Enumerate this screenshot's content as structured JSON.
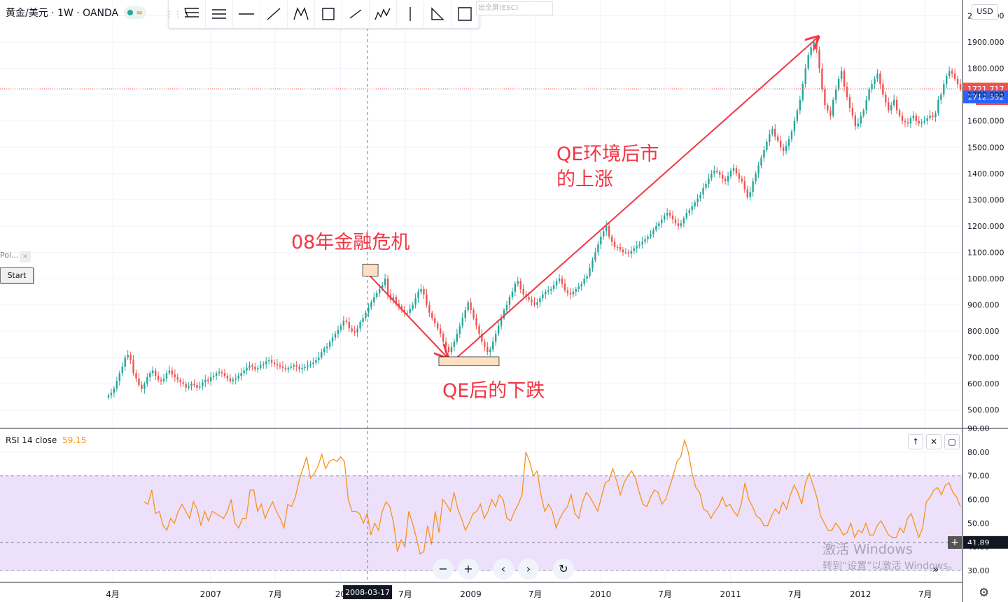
{
  "legend": {
    "symbol": "黄金/美元 · 1W · OANDA"
  },
  "toolbar": {
    "exit_label": "出全屏(ESC)",
    "tools": [
      "fib-icon",
      "parallel-channel-icon",
      "horizontal-line-icon",
      "trend-line-icon",
      "pattern-icon",
      "rectangle-icon",
      "segment-icon",
      "elliott-icon",
      "vertical-line-icon",
      "triangle-icon",
      "box-icon"
    ]
  },
  "currency": "USD",
  "side_panel": {
    "poi_label": "Poi...",
    "close_label": "×",
    "start_label": "Start"
  },
  "annotations": {
    "crisis": "08年金融危机",
    "qe_drop": "QE后的下跌",
    "qe_rise_line1": "QE环境后市",
    "qe_rise_line2": "的上涨"
  },
  "price_badges": {
    "last": "1721.717",
    "countdown": "4d 14h",
    "other": "1712.552"
  },
  "rsi": {
    "label": "RSI 14 close",
    "value": "59.15",
    "crosshair_value": "41.89",
    "yticks": [
      "90.00",
      "80.00",
      "70.00",
      "60.00",
      "50.00",
      "40.00",
      "30.00"
    ]
  },
  "crosshair_date": "2008-03-17",
  "xaxis_labels": [
    "4月",
    "2007",
    "7月",
    "20",
    "7月",
    "2009",
    "7月",
    "2010",
    "7月",
    "2011",
    "7月",
    "2012",
    "7月"
  ],
  "navigation": {
    "zoom_out": "−",
    "zoom_in": "+",
    "prev": "‹",
    "next": "›",
    "reset": "↻",
    "scroll_end": "»"
  },
  "watermark": {
    "line1": "激活 Windows",
    "line2": "转到“设置”以激活 Windows。"
  },
  "colors": {
    "up": "#26a69a",
    "down": "#ef5350",
    "annotation": "#f23645",
    "rsi_line": "#f7931a",
    "rsi_band": "#ede0fb",
    "blue_badge": "#2962ff"
  },
  "chart_data": [
    {
      "type": "candlestick",
      "title": "黄金/美元 · 1W · OANDA",
      "ylabel": "USD",
      "ylim": [
        430,
        2060
      ],
      "yticks": [
        "2000.000",
        "1900.000",
        "1800.000",
        "1700.000",
        "1600.000",
        "1500.000",
        "1400.000",
        "1300.000",
        "1200.000",
        "1100.000",
        "1000.000",
        "900.000",
        "800.000",
        "700.000",
        "600.000",
        "500.000"
      ],
      "x_start": "2006-03-20",
      "x_end": "2012-10-08",
      "weekly_close": [
        556,
        566,
        582,
        610,
        640,
        665,
        700,
        710,
        690,
        640,
        620,
        595,
        580,
        600,
        625,
        640,
        650,
        630,
        615,
        610,
        620,
        640,
        650,
        635,
        625,
        615,
        605,
        600,
        585,
        590,
        600,
        595,
        585,
        590,
        605,
        615,
        610,
        625,
        630,
        640,
        645,
        640,
        630,
        620,
        610,
        615,
        620,
        630,
        640,
        650,
        660,
        670,
        665,
        655,
        660,
        670,
        675,
        685,
        690,
        680,
        675,
        670,
        665,
        660,
        655,
        660,
        665,
        670,
        665,
        655,
        660,
        665,
        670,
        675,
        680,
        690,
        700,
        720,
        735,
        740,
        760,
        775,
        790,
        805,
        820,
        840,
        835,
        810,
        800,
        795,
        810,
        835,
        850,
        870,
        890,
        910,
        930,
        945,
        960,
        975,
        1000,
        940,
        920,
        930,
        905,
        895,
        880,
        870,
        870,
        885,
        900,
        925,
        950,
        960,
        940,
        900,
        870,
        850,
        830,
        810,
        790,
        760,
        740,
        720,
        740,
        760,
        790,
        820,
        850,
        880,
        910,
        880,
        850,
        820,
        790,
        760,
        740,
        720,
        730,
        760,
        790,
        820,
        850,
        880,
        900,
        930,
        950,
        980,
        990,
        960,
        940,
        930,
        920,
        910,
        900,
        910,
        925,
        940,
        950,
        955,
        960,
        975,
        990,
        1000,
        980,
        955,
        945,
        940,
        950,
        960,
        970,
        980,
        1000,
        1010,
        1040,
        1070,
        1100,
        1130,
        1160,
        1180,
        1200,
        1160,
        1140,
        1120,
        1120,
        1110,
        1100,
        1100,
        1095,
        1105,
        1115,
        1125,
        1130,
        1140,
        1150,
        1160,
        1170,
        1185,
        1200,
        1210,
        1225,
        1240,
        1250,
        1240,
        1225,
        1210,
        1200,
        1210,
        1230,
        1250,
        1260,
        1275,
        1290,
        1305,
        1320,
        1345,
        1360,
        1380,
        1400,
        1410,
        1405,
        1395,
        1380,
        1370,
        1390,
        1410,
        1420,
        1400,
        1380,
        1370,
        1340,
        1310,
        1330,
        1370,
        1400,
        1430,
        1460,
        1490,
        1520,
        1550,
        1570,
        1540,
        1525,
        1500,
        1485,
        1505,
        1530,
        1560,
        1600,
        1640,
        1680,
        1740,
        1800,
        1850,
        1880,
        1900,
        1870,
        1800,
        1720,
        1660,
        1640,
        1620,
        1680,
        1720,
        1760,
        1790,
        1730,
        1690,
        1650,
        1620,
        1580,
        1590,
        1620,
        1640,
        1680,
        1720,
        1740,
        1760,
        1780,
        1740,
        1700,
        1670,
        1640,
        1660,
        1680,
        1640,
        1620,
        1600,
        1595,
        1590,
        1610,
        1620,
        1600,
        1590,
        1595,
        1600,
        1610,
        1620,
        1615,
        1630,
        1680,
        1700,
        1740,
        1770,
        1790,
        1780,
        1760,
        1740,
        1720
      ]
    },
    {
      "type": "line",
      "title": "RSI 14 close",
      "ylim": [
        25,
        90
      ],
      "reference_lines": [
        70,
        30
      ],
      "band": [
        30,
        70
      ],
      "series": [
        {
          "name": "RSI 14 close",
          "values": [
            59,
            58,
            64,
            54,
            55,
            49,
            47,
            52,
            50,
            55,
            58,
            55,
            52,
            59,
            56,
            49,
            55,
            51,
            55,
            54,
            53,
            52,
            55,
            60,
            50,
            48,
            52,
            52,
            64,
            64,
            55,
            58,
            52,
            56,
            59,
            55,
            52,
            48,
            58,
            57,
            61,
            68,
            73,
            78,
            69,
            71,
            74,
            79,
            73,
            76,
            77,
            76,
            78,
            76,
            60,
            55,
            55,
            54,
            50,
            54,
            45,
            50,
            47,
            55,
            59,
            57,
            50,
            38,
            43,
            40,
            55,
            50,
            44,
            37,
            38,
            49,
            41,
            55,
            46,
            60,
            58,
            55,
            63,
            56,
            52,
            47,
            50,
            54,
            55,
            58,
            52,
            55,
            60,
            57,
            62,
            60,
            52,
            51,
            55,
            58,
            62,
            80,
            76,
            70,
            72,
            62,
            55,
            58,
            55,
            48,
            52,
            55,
            57,
            62,
            54,
            52,
            59,
            63,
            61,
            58,
            55,
            61,
            67,
            68,
            73,
            68,
            62,
            67,
            70,
            72,
            69,
            63,
            58,
            57,
            61,
            64,
            63,
            58,
            60,
            65,
            70,
            76,
            78,
            85,
            80,
            71,
            65,
            63,
            56,
            55,
            52,
            55,
            57,
            61,
            57,
            58,
            55,
            53,
            58,
            67,
            60,
            57,
            53,
            52,
            49,
            49,
            53,
            56,
            54,
            59,
            56,
            62,
            66,
            63,
            58,
            67,
            71,
            66,
            61,
            53,
            50,
            47,
            47,
            50,
            48,
            45,
            46,
            50,
            44,
            47,
            46,
            50,
            45,
            45,
            49,
            51,
            48,
            45,
            44,
            44,
            48,
            46,
            52,
            54,
            49,
            44,
            48,
            59,
            61,
            64,
            65,
            62,
            66,
            67,
            63,
            61,
            57
          ]
        }
      ]
    }
  ]
}
